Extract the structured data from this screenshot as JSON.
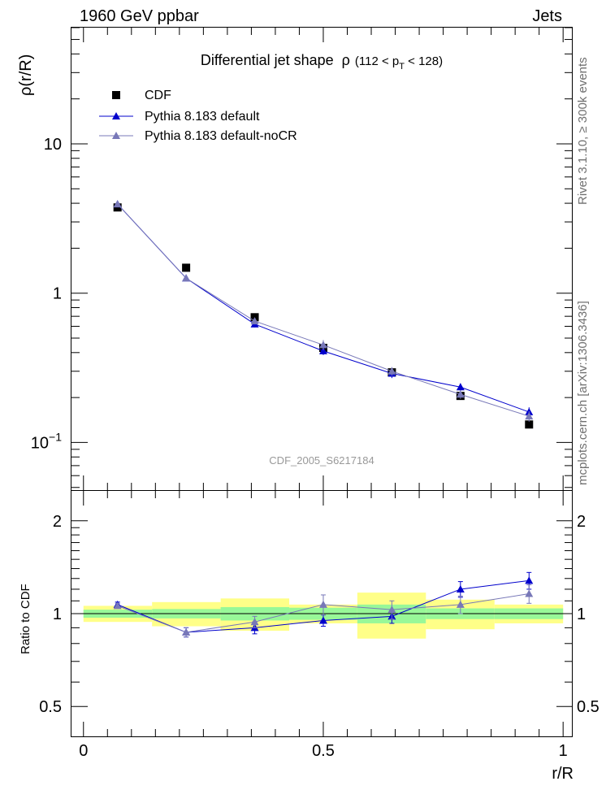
{
  "header": {
    "left": "1960 GeV ppbar",
    "right": "Jets"
  },
  "side_labels": {
    "rivet": "Rivet 3.1.10, ≥ 300k events",
    "mcplots": "mcplots.cern.ch [arXiv:1306.3436]"
  },
  "chart_data": [
    {
      "type": "scatter",
      "title": "Differential jet shape",
      "title_rho": "ρ",
      "title_range": "(112 < p",
      "title_sub": "T",
      "title_range_end": " < 128)",
      "ylabel": "ρ(r/R)",
      "yscale": "log",
      "ylim": [
        0.048,
        60
      ],
      "xlim": [
        -0.025,
        1.02
      ],
      "y_ticks": [
        {
          "value": 10,
          "label": "10"
        },
        {
          "value": 1,
          "label": "1"
        },
        {
          "value": 0.1,
          "label": "10",
          "sup": "−1"
        }
      ],
      "analysis_label": "CDF_2005_S6217184",
      "legend": [
        {
          "name": "CDF",
          "marker": "square",
          "color": "#000000"
        },
        {
          "name": "Pythia 8.183 default",
          "marker": "triangle",
          "color": "#0000cc"
        },
        {
          "name": "Pythia 8.183 default-noCR",
          "marker": "triangle",
          "color": "#7878b8"
        }
      ],
      "x": [
        0.071,
        0.214,
        0.357,
        0.5,
        0.643,
        0.786,
        0.929
      ],
      "series": [
        {
          "name": "CDF",
          "values": [
            3.75,
            1.48,
            0.69,
            0.43,
            0.295,
            0.205,
            0.132
          ],
          "errors": [
            0.05,
            0.03,
            0.02,
            0.01,
            0.008,
            0.006,
            0.004
          ]
        },
        {
          "name": "Pythia 8.183 default",
          "values": [
            3.95,
            1.26,
            0.62,
            0.41,
            0.29,
            0.235,
            0.16
          ],
          "errors": [
            0.15,
            0.04,
            0.03,
            0.025,
            0.02,
            0.014,
            0.012
          ]
        },
        {
          "name": "Pythia 8.183 default-noCR",
          "values": [
            3.95,
            1.26,
            0.65,
            0.45,
            0.3,
            0.21,
            0.15
          ],
          "errors": [
            0.15,
            0.04,
            0.03,
            0.035,
            0.02,
            0.014,
            0.012
          ]
        }
      ]
    },
    {
      "type": "scatter",
      "ylabel": "Ratio to CDF",
      "xlabel": "r/R",
      "yscale": "log",
      "ylim": [
        0.4,
        2.5
      ],
      "xlim": [
        -0.025,
        1.02
      ],
      "y_ticks": [
        {
          "value": 2,
          "label": "2"
        },
        {
          "value": 1,
          "label": "1"
        },
        {
          "value": 0.5,
          "label": "0.5"
        }
      ],
      "x_ticks": [
        {
          "value": 0,
          "label": "0"
        },
        {
          "value": 0.5,
          "label": "0.5"
        },
        {
          "value": 1,
          "label": "1"
        }
      ],
      "bin_edges": [
        0,
        0.143,
        0.286,
        0.429,
        0.571,
        0.714,
        0.857,
        1.0
      ],
      "band_stat": [
        0.03,
        0.035,
        0.05,
        0.045,
        0.07,
        0.04,
        0.04
      ],
      "band_total": [
        0.06,
        0.09,
        0.12,
        0.07,
        0.17,
        0.11,
        0.07
      ],
      "series": [
        {
          "name": "Pythia 8.183 default",
          "values": [
            1.07,
            0.87,
            0.9,
            0.95,
            0.98,
            1.2,
            1.28
          ],
          "errors": [
            0.02,
            0.03,
            0.04,
            0.04,
            0.05,
            0.07,
            0.08
          ]
        },
        {
          "name": "Pythia 8.183 default-noCR",
          "values": [
            1.06,
            0.87,
            0.94,
            1.07,
            1.03,
            1.07,
            1.16
          ],
          "errors": [
            0.02,
            0.03,
            0.04,
            0.08,
            0.07,
            0.07,
            0.08
          ]
        }
      ]
    }
  ]
}
